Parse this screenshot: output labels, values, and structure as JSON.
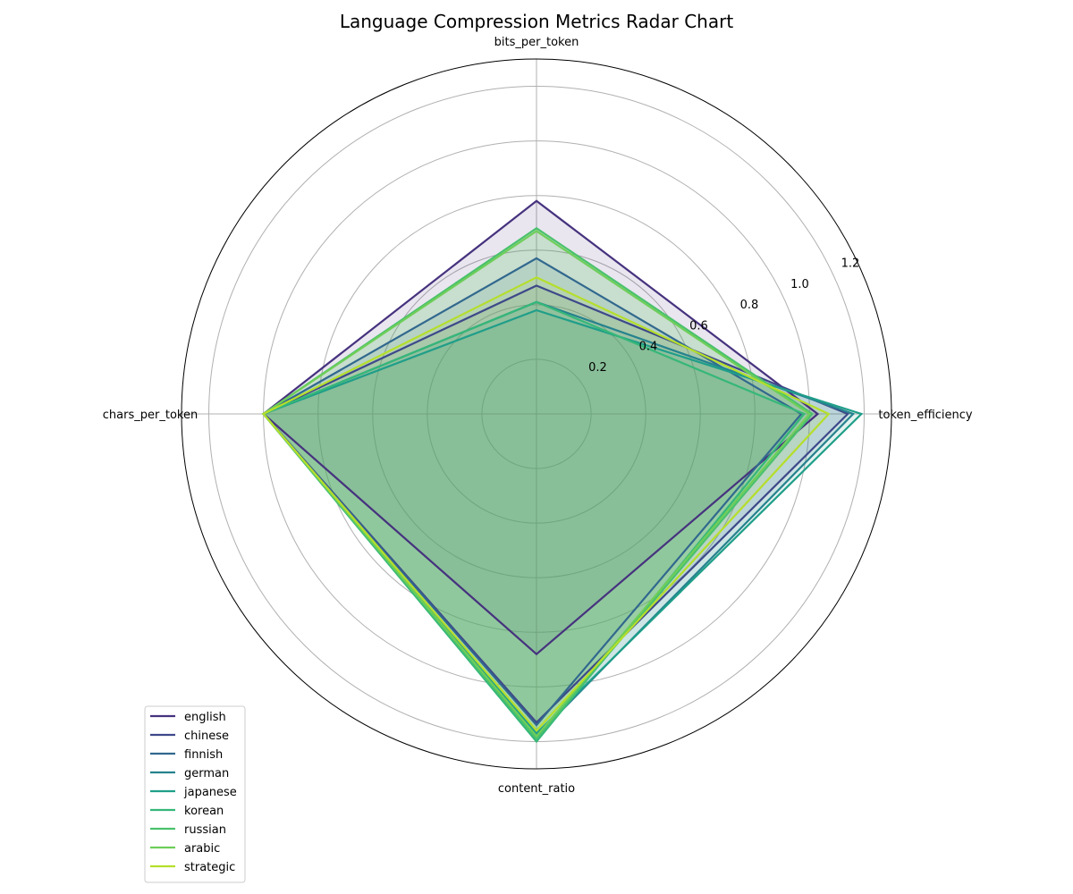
{
  "chart_data": {
    "type": "radar",
    "title": "Language Compression Metrics Radar Chart",
    "axes": [
      "bits_per_token",
      "token_efficiency",
      "content_ratio",
      "chars_per_token"
    ],
    "rlim": [
      0,
      1.3
    ],
    "rticks": [
      0.2,
      0.4,
      0.6,
      0.8,
      1.0,
      1.2
    ],
    "rtick_labels": [
      "0.2",
      "0.4",
      "0.6",
      "0.8",
      "1.0",
      "1.2"
    ],
    "grid": true,
    "legend_position": "lower-left",
    "series": [
      {
        "name": "english",
        "color": "#46327e",
        "values": [
          0.78,
          1.03,
          0.88,
          1.0
        ]
      },
      {
        "name": "chinese",
        "color": "#3e4989",
        "values": [
          0.47,
          1.14,
          1.13,
          1.0
        ]
      },
      {
        "name": "finnish",
        "color": "#31688e",
        "values": [
          0.57,
          0.97,
          1.14,
          1.0
        ]
      },
      {
        "name": "german",
        "color": "#26828e",
        "values": [
          0.41,
          1.16,
          1.18,
          1.0
        ]
      },
      {
        "name": "japanese",
        "color": "#1f9e89",
        "values": [
          0.38,
          1.19,
          1.17,
          1.0
        ]
      },
      {
        "name": "korean",
        "color": "#35b779",
        "values": [
          0.41,
          0.98,
          1.2,
          1.0
        ]
      },
      {
        "name": "russian",
        "color": "#4ac16d",
        "values": [
          0.68,
          1.01,
          1.19,
          1.0
        ]
      },
      {
        "name": "arabic",
        "color": "#6ece58",
        "values": [
          0.67,
          1.0,
          1.18,
          1.0
        ]
      },
      {
        "name": "strategic",
        "color": "#b5de2b",
        "values": [
          0.5,
          1.07,
          1.16,
          1.0
        ]
      }
    ]
  }
}
